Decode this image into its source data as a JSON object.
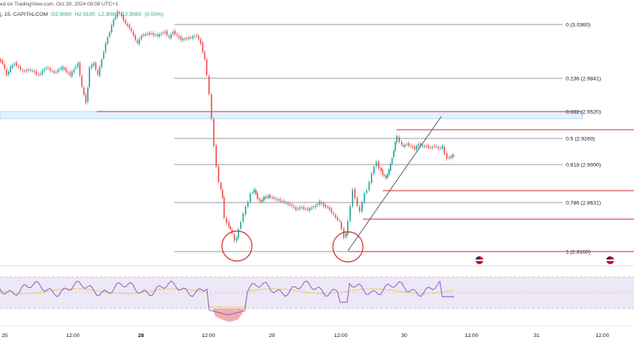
{
  "header": {
    "published": "ed on TradingView.com, Oct 30, 2024 09:08 UTC+1",
    "symbol": "j, 15, CAPITALCOM",
    "ohlc_o": "O2.9080",
    "ohlc_h": "H2.9100",
    "ohlc_l": "L2.9080",
    "ohlc_c": "C2.9080",
    "change": "(0.00%)"
  },
  "fib_levels": [
    {
      "label": "0 (3.0360)"
    },
    {
      "label": "0.236 (2.9841)"
    },
    {
      "label": "0.382 (2.9520)"
    },
    {
      "label": "0.5 (2.9260)"
    },
    {
      "label": "0.618 (2.9000)"
    },
    {
      "label": "0.786 (2.8631)"
    },
    {
      "label": "1 (2.8160)"
    }
  ],
  "time_axis": [
    {
      "label": "25",
      "bold": false
    },
    {
      "label": "12:00",
      "bold": false
    },
    {
      "label": "28",
      "bold": true
    },
    {
      "label": "12:00",
      "bold": false
    },
    {
      "label": "29",
      "bold": false
    },
    {
      "label": "12:00",
      "bold": false
    },
    {
      "label": "30",
      "bold": false
    },
    {
      "label": "12:00",
      "bold": false
    },
    {
      "label": "31",
      "bold": false
    },
    {
      "label": "12:00",
      "bold": false
    }
  ],
  "colors": {
    "up": "#26a69a",
    "down": "#ef5350",
    "fib": "#787b86",
    "resistance": "#d32f2f",
    "rsi_line": "#7e57c2",
    "rsi_ma": "#f5c242",
    "rsi_band": "#ede7f6"
  },
  "icons": [
    "usd-flag-icon",
    "usd-flag-icon",
    "circle-annotation",
    "trendline-annotation"
  ]
}
